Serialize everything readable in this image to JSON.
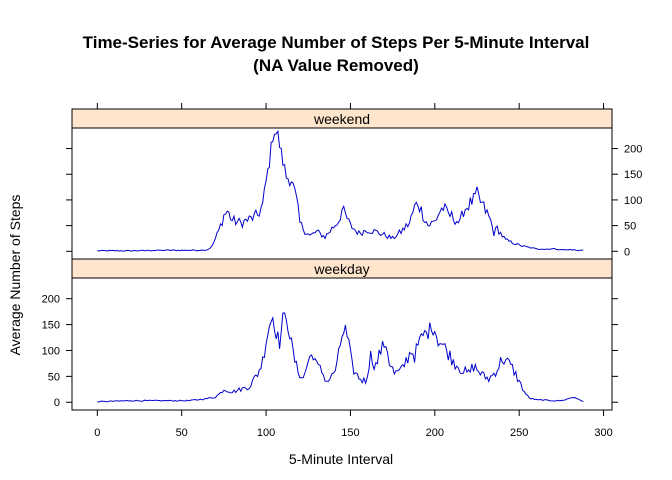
{
  "chart_data": {
    "type": "line",
    "title": "Time-Series for Average Number of Steps Per 5-Minute Interval",
    "subtitle": "(NA Value Removed)",
    "xlabel": "5-Minute Interval",
    "ylabel": "Average Number of Steps",
    "xlim": [
      -15,
      305
    ],
    "ylim": [
      -15,
      240
    ],
    "x_ticks": [
      0,
      50,
      100,
      150,
      200,
      250,
      300
    ],
    "y_ticks": [
      0,
      50,
      100,
      150,
      200
    ],
    "grid": false,
    "line_color": "#0000cd",
    "strip_color": "#ffe5cc",
    "panels": [
      {
        "name": "weekend",
        "key_points": [
          [
            0,
            0
          ],
          [
            20,
            0
          ],
          [
            40,
            1
          ],
          [
            50,
            1
          ],
          [
            60,
            1
          ],
          [
            65,
            2
          ],
          [
            68,
            10
          ],
          [
            72,
            40
          ],
          [
            75,
            70
          ],
          [
            77,
            78
          ],
          [
            80,
            60
          ],
          [
            85,
            55
          ],
          [
            90,
            62
          ],
          [
            95,
            70
          ],
          [
            98,
            90
          ],
          [
            100,
            135
          ],
          [
            102,
            175
          ],
          [
            104,
            225
          ],
          [
            105,
            235
          ],
          [
            107,
            225
          ],
          [
            109,
            190
          ],
          [
            111,
            160
          ],
          [
            112,
            145
          ],
          [
            115,
            140
          ],
          [
            118,
            100
          ],
          [
            120,
            55
          ],
          [
            123,
            40
          ],
          [
            126,
            30
          ],
          [
            130,
            38
          ],
          [
            135,
            28
          ],
          [
            140,
            48
          ],
          [
            143,
            60
          ],
          [
            145,
            80
          ],
          [
            147,
            70
          ],
          [
            150,
            50
          ],
          [
            155,
            35
          ],
          [
            160,
            42
          ],
          [
            165,
            38
          ],
          [
            170,
            32
          ],
          [
            175,
            25
          ],
          [
            180,
            38
          ],
          [
            185,
            55
          ],
          [
            188,
            85
          ],
          [
            190,
            95
          ],
          [
            193,
            72
          ],
          [
            196,
            50
          ],
          [
            200,
            58
          ],
          [
            203,
            78
          ],
          [
            205,
            85
          ],
          [
            207,
            75
          ],
          [
            210,
            68
          ],
          [
            213,
            60
          ],
          [
            215,
            55
          ],
          [
            217,
            80
          ],
          [
            220,
            90
          ],
          [
            223,
            100
          ],
          [
            225,
            112
          ],
          [
            227,
            96
          ],
          [
            230,
            80
          ],
          [
            233,
            60
          ],
          [
            235,
            35
          ],
          [
            237,
            45
          ],
          [
            240,
            30
          ],
          [
            242,
            22
          ],
          [
            245,
            18
          ],
          [
            250,
            12
          ],
          [
            255,
            8
          ],
          [
            260,
            5
          ],
          [
            265,
            3
          ],
          [
            270,
            4
          ],
          [
            275,
            2
          ],
          [
            280,
            2
          ],
          [
            285,
            1
          ],
          [
            288,
            1
          ]
        ]
      },
      {
        "name": "weekday",
        "key_points": [
          [
            0,
            0
          ],
          [
            20,
            2
          ],
          [
            40,
            2
          ],
          [
            55,
            2
          ],
          [
            60,
            5
          ],
          [
            65,
            7
          ],
          [
            70,
            10
          ],
          [
            73,
            18
          ],
          [
            75,
            25
          ],
          [
            78,
            22
          ],
          [
            80,
            20
          ],
          [
            85,
            25
          ],
          [
            90,
            30
          ],
          [
            95,
            55
          ],
          [
            98,
            80
          ],
          [
            100,
            120
          ],
          [
            102,
            150
          ],
          [
            104,
            165
          ],
          [
            106,
            135
          ],
          [
            108,
            115
          ],
          [
            110,
            160
          ],
          [
            112,
            168
          ],
          [
            114,
            130
          ],
          [
            116,
            95
          ],
          [
            118,
            68
          ],
          [
            120,
            55
          ],
          [
            122,
            45
          ],
          [
            125,
            80
          ],
          [
            128,
            95
          ],
          [
            130,
            70
          ],
          [
            133,
            60
          ],
          [
            136,
            40
          ],
          [
            139,
            50
          ],
          [
            142,
            70
          ],
          [
            145,
            130
          ],
          [
            147,
            140
          ],
          [
            149,
            110
          ],
          [
            151,
            70
          ],
          [
            153,
            55
          ],
          [
            156,
            45
          ],
          [
            159,
            40
          ],
          [
            162,
            90
          ],
          [
            165,
            70
          ],
          [
            168,
            100
          ],
          [
            171,
            115
          ],
          [
            173,
            80
          ],
          [
            176,
            55
          ],
          [
            180,
            60
          ],
          [
            183,
            80
          ],
          [
            186,
            100
          ],
          [
            188,
            90
          ],
          [
            190,
            110
          ],
          [
            193,
            130
          ],
          [
            196,
            135
          ],
          [
            198,
            148
          ],
          [
            200,
            140
          ],
          [
            202,
            120
          ],
          [
            205,
            110
          ],
          [
            208,
            95
          ],
          [
            211,
            80
          ],
          [
            214,
            70
          ],
          [
            217,
            60
          ],
          [
            220,
            55
          ],
          [
            223,
            70
          ],
          [
            226,
            60
          ],
          [
            229,
            50
          ],
          [
            232,
            45
          ],
          [
            235,
            55
          ],
          [
            238,
            70
          ],
          [
            240,
            85
          ],
          [
            242,
            80
          ],
          [
            245,
            70
          ],
          [
            247,
            60
          ],
          [
            250,
            40
          ],
          [
            253,
            20
          ],
          [
            256,
            8
          ],
          [
            260,
            5
          ],
          [
            265,
            3
          ],
          [
            270,
            2
          ],
          [
            275,
            2
          ],
          [
            280,
            8
          ],
          [
            283,
            10
          ],
          [
            286,
            3
          ],
          [
            288,
            1
          ]
        ]
      }
    ]
  }
}
